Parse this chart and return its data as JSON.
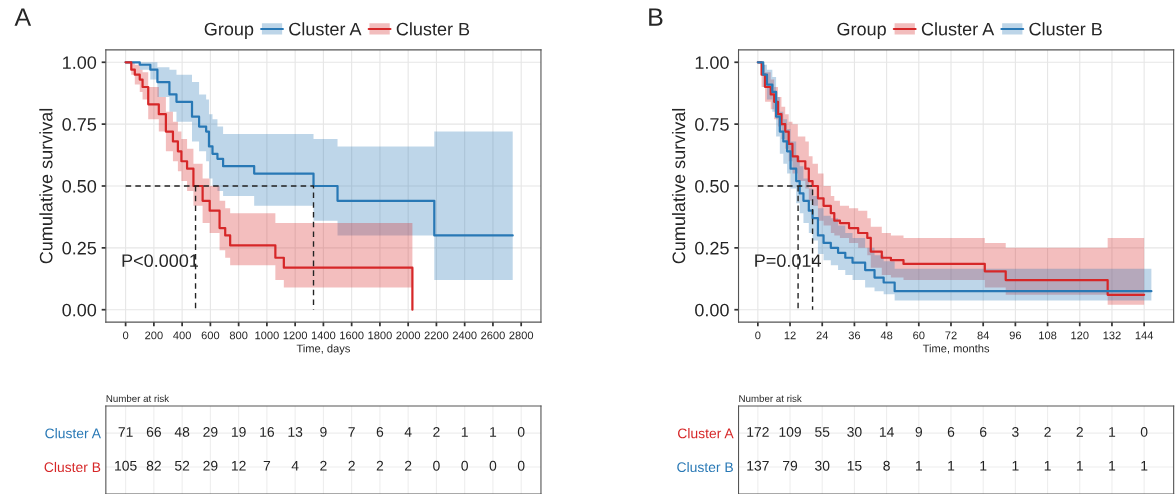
{
  "chart_data": [
    {
      "type": "step",
      "xlabel": "Time, days",
      "ylabel": "Cumulative survival",
      "legend_title": "Group",
      "legend": "top",
      "grid": true,
      "annotations": [
        "A",
        "P<0.0001"
      ],
      "xlim": [
        -140,
        2940
      ],
      "ylim": [
        -0.05,
        1.05
      ],
      "xticks": [
        0,
        200,
        400,
        600,
        800,
        1000,
        1200,
        1400,
        1600,
        1800,
        2000,
        2200,
        2400,
        2600,
        2800
      ],
      "yticks": [
        {
          "value": 0,
          "label": "0.00"
        },
        {
          "value": 0.25,
          "label": "0.25"
        },
        {
          "value": 0.5,
          "label": "0.50"
        },
        {
          "value": 0.75,
          "label": "0.75"
        },
        {
          "value": 1,
          "label": "1.00"
        }
      ],
      "series": [
        {
          "name": "Cluster A",
          "color": "#2878b5",
          "x": [
            0,
            100,
            175,
            225,
            310,
            360,
            470,
            520,
            570,
            590,
            615,
            650,
            690,
            910,
            1330,
            1500,
            2185,
            2740
          ],
          "values": [
            1,
            0.99,
            0.97,
            0.92,
            0.87,
            0.84,
            0.78,
            0.74,
            0.72,
            0.66,
            0.63,
            0.61,
            0.58,
            0.55,
            0.5,
            0.44,
            0.3,
            0.3
          ],
          "lower": [
            1,
            0.97,
            0.93,
            0.86,
            0.8,
            0.76,
            0.68,
            0.64,
            0.6,
            0.53,
            0.5,
            0.48,
            0.46,
            0.42,
            0.36,
            0.3,
            0.12,
            0.12
          ],
          "upper": [
            1,
            1,
            1,
            0.98,
            0.97,
            0.95,
            0.92,
            0.87,
            0.85,
            0.79,
            0.77,
            0.74,
            0.71,
            0.71,
            0.69,
            0.66,
            0.72,
            0.72
          ]
        },
        {
          "name": "Cluster B",
          "color": "#d62728",
          "x": [
            0,
            40,
            65,
            100,
            120,
            160,
            235,
            285,
            335,
            370,
            395,
            435,
            480,
            545,
            595,
            665,
            705,
            740,
            1060,
            1120,
            2030
          ],
          "values": [
            1,
            0.97,
            0.95,
            0.93,
            0.9,
            0.83,
            0.79,
            0.72,
            0.68,
            0.64,
            0.6,
            0.57,
            0.5,
            0.44,
            0.4,
            0.33,
            0.3,
            0.26,
            0.21,
            0.17,
            0
          ],
          "lower": [
            1,
            0.95,
            0.91,
            0.88,
            0.85,
            0.77,
            0.72,
            0.64,
            0.6,
            0.56,
            0.52,
            0.48,
            0.42,
            0.35,
            0.31,
            0.24,
            0.21,
            0.18,
            0.12,
            0.09,
            0.09
          ],
          "upper": [
            1,
            1,
            0.99,
            0.97,
            0.96,
            0.9,
            0.86,
            0.8,
            0.76,
            0.72,
            0.69,
            0.65,
            0.59,
            0.53,
            0.5,
            0.44,
            0.41,
            0.39,
            0.35,
            0.35,
            0.35
          ]
        },
        {
          "type": "line",
          "line_style": "dashed",
          "color": "#222222",
          "x": [
            0,
            1330,
            1330
          ],
          "values": [
            0.5,
            0.5,
            0
          ]
        },
        {
          "type": "line",
          "line_style": "dashed",
          "color": "#222222",
          "x": [
            495,
            495
          ],
          "values": [
            0.5,
            0
          ]
        }
      ]
    },
    {
      "type": "heatmap",
      "title": "Number at risk",
      "tick_labels": "y",
      "grid": true,
      "data_labels": true,
      "categories": [
        null,
        null,
        null,
        null,
        null,
        null,
        null,
        null,
        null,
        null,
        null,
        null,
        null,
        null,
        null
      ],
      "y_categories": [
        "Cluster A",
        "Cluster B"
      ],
      "cells": [
        [
          71,
          66,
          48,
          29,
          19,
          16,
          13,
          9,
          7,
          6,
          4,
          2,
          1,
          1,
          0
        ],
        [
          105,
          82,
          52,
          29,
          12,
          7,
          4,
          2,
          2,
          2,
          2,
          0,
          0,
          0,
          0
        ]
      ]
    },
    {
      "type": "step",
      "xlabel": "Time, months",
      "ylabel": "Cumulative survival",
      "legend_title": "Group",
      "legend": "top",
      "grid": true,
      "annotations": [
        "B",
        "P=0.014"
      ],
      "xlim": [
        -7.2,
        155
      ],
      "ylim": [
        -0.05,
        1.05
      ],
      "xticks": [
        0,
        12,
        24,
        36,
        48,
        60,
        72,
        84,
        96,
        108,
        120,
        132,
        144
      ],
      "yticks": [
        {
          "value": 0,
          "label": "0.00"
        },
        {
          "value": 0.25,
          "label": "0.25"
        },
        {
          "value": 0.5,
          "label": "0.50"
        },
        {
          "value": 0.75,
          "label": "0.75"
        },
        {
          "value": 1,
          "label": "1.00"
        }
      ],
      "series": [
        {
          "name": "Cluster A",
          "color": "#d62728",
          "x": [
            0,
            1.4,
            2.7,
            4.8,
            6.1,
            7.5,
            8.8,
            10.2,
            11.5,
            12.9,
            14.9,
            17.7,
            19,
            20.4,
            22.4,
            24.5,
            27.2,
            28.5,
            30.6,
            34,
            37.4,
            40.8,
            42.1,
            46.2,
            49.6,
            54.3,
            84.6,
            92.4,
            130.4,
            144
          ],
          "values": [
            1,
            0.95,
            0.9,
            0.87,
            0.84,
            0.79,
            0.75,
            0.72,
            0.67,
            0.62,
            0.6,
            0.57,
            0.52,
            0.5,
            0.45,
            0.42,
            0.39,
            0.36,
            0.35,
            0.33,
            0.31,
            0.29,
            0.235,
            0.21,
            0.2,
            0.185,
            0.155,
            0.12,
            0.06,
            0.06
          ],
          "lower": [
            1,
            0.9,
            0.84,
            0.81,
            0.77,
            0.74,
            0.69,
            0.65,
            0.6,
            0.55,
            0.52,
            0.49,
            0.44,
            0.42,
            0.36,
            0.34,
            0.31,
            0.3,
            0.29,
            0.27,
            0.25,
            0.22,
            0.17,
            0.14,
            0.13,
            0.12,
            0.09,
            0.06,
            0.02,
            0.02
          ],
          "upper": [
            1,
            0.99,
            0.96,
            0.93,
            0.9,
            0.86,
            0.82,
            0.79,
            0.76,
            0.75,
            0.7,
            0.68,
            0.62,
            0.59,
            0.55,
            0.5,
            0.46,
            0.44,
            0.42,
            0.41,
            0.4,
            0.37,
            0.335,
            0.31,
            0.3,
            0.29,
            0.27,
            0.25,
            0.29,
            0.29
          ]
        },
        {
          "name": "Cluster B",
          "color": "#2878b5",
          "x": [
            0,
            2,
            3.4,
            5.4,
            6.8,
            8.2,
            9.5,
            10.9,
            12.2,
            14.3,
            15.6,
            17,
            19,
            20.4,
            22.4,
            24.5,
            27.2,
            29.9,
            32.6,
            35.3,
            40,
            43.5,
            46.9,
            51,
            146.7
          ],
          "values": [
            1,
            0.95,
            0.91,
            0.88,
            0.78,
            0.72,
            0.68,
            0.64,
            0.57,
            0.52,
            0.47,
            0.44,
            0.4,
            0.37,
            0.3,
            0.27,
            0.25,
            0.23,
            0.21,
            0.19,
            0.16,
            0.13,
            0.11,
            0.075,
            0.075
          ],
          "lower": [
            1,
            0.9,
            0.85,
            0.8,
            0.7,
            0.63,
            0.59,
            0.55,
            0.49,
            0.43,
            0.39,
            0.35,
            0.31,
            0.28,
            0.225,
            0.2,
            0.18,
            0.16,
            0.14,
            0.12,
            0.09,
            0.075,
            0.063,
            0.037,
            0.037
          ],
          "upper": [
            1,
            0.99,
            0.97,
            0.94,
            0.86,
            0.8,
            0.77,
            0.73,
            0.68,
            0.62,
            0.58,
            0.53,
            0.49,
            0.46,
            0.41,
            0.38,
            0.37,
            0.34,
            0.31,
            0.29,
            0.25,
            0.22,
            0.196,
            0.166,
            0.166
          ]
        },
        {
          "type": "line",
          "line_style": "dashed",
          "color": "#222222",
          "x": [
            0,
            20.4,
            20.4
          ],
          "values": [
            0.5,
            0.5,
            0
          ]
        },
        {
          "type": "line",
          "line_style": "dashed",
          "color": "#222222",
          "x": [
            15,
            15
          ],
          "values": [
            0.5,
            0
          ]
        }
      ]
    },
    {
      "type": "heatmap",
      "title": "Number at risk",
      "tick_labels": "y",
      "grid": true,
      "data_labels": true,
      "categories": [
        null,
        null,
        null,
        null,
        null,
        null,
        null,
        null,
        null,
        null,
        null,
        null,
        null
      ],
      "y_categories": [
        "Cluster A",
        "Cluster B"
      ],
      "cells": [
        [
          172,
          109,
          55,
          30,
          14,
          9,
          6,
          6,
          3,
          2,
          2,
          1,
          0
        ],
        [
          137,
          79,
          30,
          15,
          8,
          1,
          1,
          1,
          1,
          1,
          1,
          1,
          1
        ]
      ]
    }
  ]
}
